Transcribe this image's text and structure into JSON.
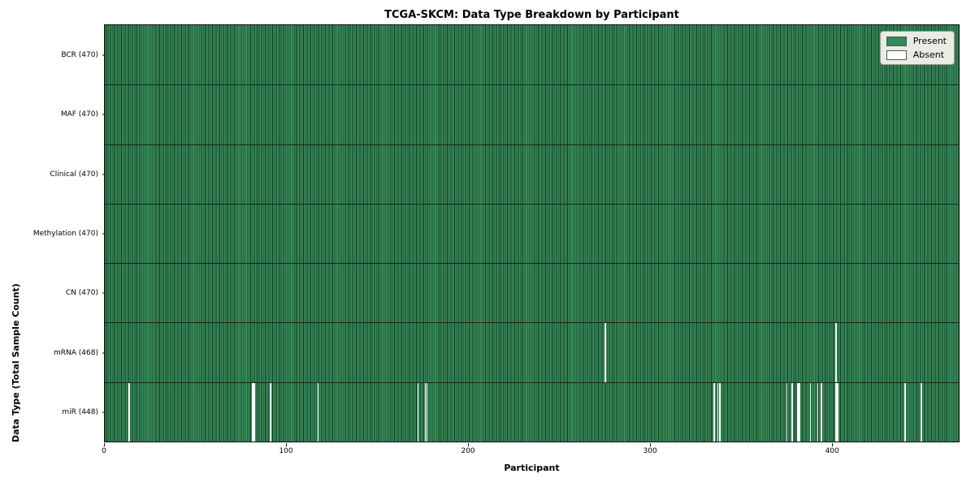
{
  "figure": {
    "title": "TCGA-SKCM: Data Type Breakdown by Participant",
    "xlabel": "Participant",
    "ylabel": "Data Type (Total Sample Count)"
  },
  "chart_data": {
    "type": "heatmap",
    "title": "TCGA-SKCM: Data Type Breakdown by Participant",
    "xlabel": "Participant",
    "ylabel": "Data Type (Total Sample Count)",
    "x_range": [
      0,
      470
    ],
    "n_participants": 470,
    "x_ticks": [
      0,
      100,
      200,
      300,
      400
    ],
    "grid": false,
    "legend_position": "upper right",
    "colors": {
      "present": "#2e8b57",
      "absent": "#ffffff",
      "cell_edge": "#143421"
    },
    "legend": [
      {
        "label": "Present",
        "color": "#2e8b57"
      },
      {
        "label": "Absent",
        "color": "#ffffff"
      }
    ],
    "rows": [
      {
        "label": "BCR (470)",
        "present_count": 470,
        "absent_participants": []
      },
      {
        "label": "MAF (470)",
        "present_count": 470,
        "absent_participants": []
      },
      {
        "label": "Clinical (470)",
        "present_count": 470,
        "absent_participants": []
      },
      {
        "label": "Methylation (470)",
        "present_count": 470,
        "absent_participants": []
      },
      {
        "label": "CN (470)",
        "present_count": 470,
        "absent_participants": []
      },
      {
        "label": "mRNA (468)",
        "present_count": 468,
        "absent_participants": [
          275,
          402
        ]
      },
      {
        "label": "miR (448)",
        "present_count": 448,
        "absent_participants": [
          13,
          81,
          82,
          91,
          117,
          172,
          176,
          177,
          335,
          337,
          338,
          375,
          378,
          381,
          382,
          388,
          392,
          394,
          402,
          403,
          440,
          449
        ]
      }
    ]
  }
}
